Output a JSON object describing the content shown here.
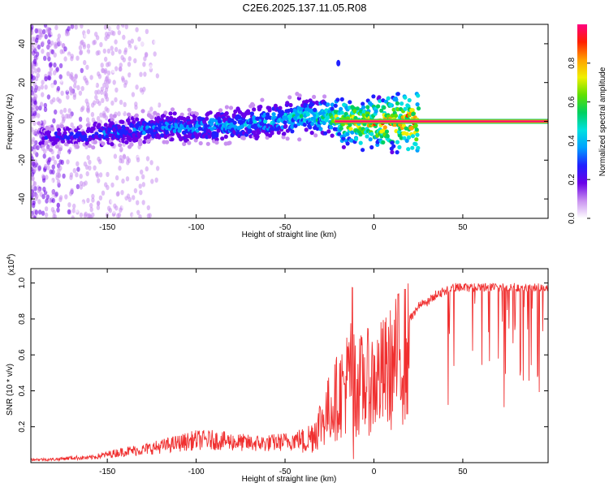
{
  "title": "C2E6.2025.137.11.05.R08",
  "chart_data": [
    {
      "type": "heatmap",
      "xlabel": "Height of straight line (km)",
      "ylabel": "Frequency (Hz)",
      "xlim": [
        -193,
        98
      ],
      "ylim": [
        -50,
        50
      ],
      "x_ticks": [
        -150,
        -100,
        -50,
        0,
        50
      ],
      "y_ticks": [
        -40,
        -20,
        0,
        20,
        40
      ],
      "colorbar": {
        "label": "Normalized spectral amplitude",
        "range": [
          0,
          1
        ],
        "ticks": [
          "0.0",
          "0.2",
          "0.4",
          "0.6",
          "0.8"
        ],
        "colors": [
          "#ffffff",
          "#c890f0",
          "#6a00e8",
          "#2020ff",
          "#00a0ff",
          "#00e0e0",
          "#00d060",
          "#60e000",
          "#f0f000",
          "#ffa000",
          "#ff2000",
          "#ff0080"
        ]
      },
      "ridge": [
        {
          "x": -180,
          "f": -8,
          "amp": 0.25
        },
        {
          "x": -160,
          "f": -7,
          "amp": 0.3
        },
        {
          "x": -140,
          "f": -5,
          "amp": 0.35
        },
        {
          "x": -120,
          "f": -3,
          "amp": 0.38
        },
        {
          "x": -100,
          "f": -3,
          "amp": 0.4
        },
        {
          "x": -80,
          "f": -2,
          "amp": 0.42
        },
        {
          "x": -60,
          "f": 0,
          "amp": 0.45
        },
        {
          "x": -40,
          "f": 3,
          "amp": 0.5
        },
        {
          "x": -25,
          "f": 2,
          "amp": 0.6
        },
        {
          "x": -15,
          "f": 0,
          "amp": 0.8
        },
        {
          "x": 0,
          "f": -1,
          "amp": 0.85
        },
        {
          "x": 20,
          "f": 0,
          "amp": 0.9
        },
        {
          "x": 95,
          "f": 0,
          "amp": 0.9
        }
      ]
    },
    {
      "type": "line",
      "xlabel": "Height of straight line (km)",
      "ylabel": "SNR (10 * v/v)",
      "y_scale_label": "(x10",
      "y_scale_exp": "4",
      "y_scale_close": ")",
      "xlim": [
        -193,
        98
      ],
      "ylim": [
        0,
        1.08
      ],
      "x_ticks": [
        -150,
        -100,
        -50,
        0,
        50
      ],
      "y_ticks": [
        0.2,
        0.4,
        0.6,
        0.8,
        1.0
      ],
      "color": "#f03030",
      "series": [
        {
          "x": [
            -193,
            -180,
            -170,
            -160,
            -150,
            -140,
            -130,
            -120,
            -110,
            -100,
            -90,
            -80,
            -70,
            -60,
            -50,
            -40,
            -35,
            -30,
            -25,
            -20,
            -15,
            -13,
            -10,
            -5,
            0,
            5,
            10,
            15,
            20,
            25,
            30,
            35,
            40,
            45,
            50,
            60,
            70,
            80,
            90,
            98
          ],
          "values": [
            0.02,
            0.02,
            0.03,
            0.03,
            0.05,
            0.07,
            0.08,
            0.1,
            0.12,
            0.14,
            0.14,
            0.13,
            0.12,
            0.12,
            0.13,
            0.15,
            0.2,
            0.3,
            0.4,
            0.5,
            0.6,
            0.65,
            0.55,
            0.6,
            0.6,
            0.65,
            0.7,
            0.8,
            0.82,
            0.9,
            0.92,
            0.96,
            0.98,
            1.0,
            1.0,
            1.0,
            1.0,
            1.0,
            1.0,
            1.0
          ]
        }
      ]
    }
  ]
}
